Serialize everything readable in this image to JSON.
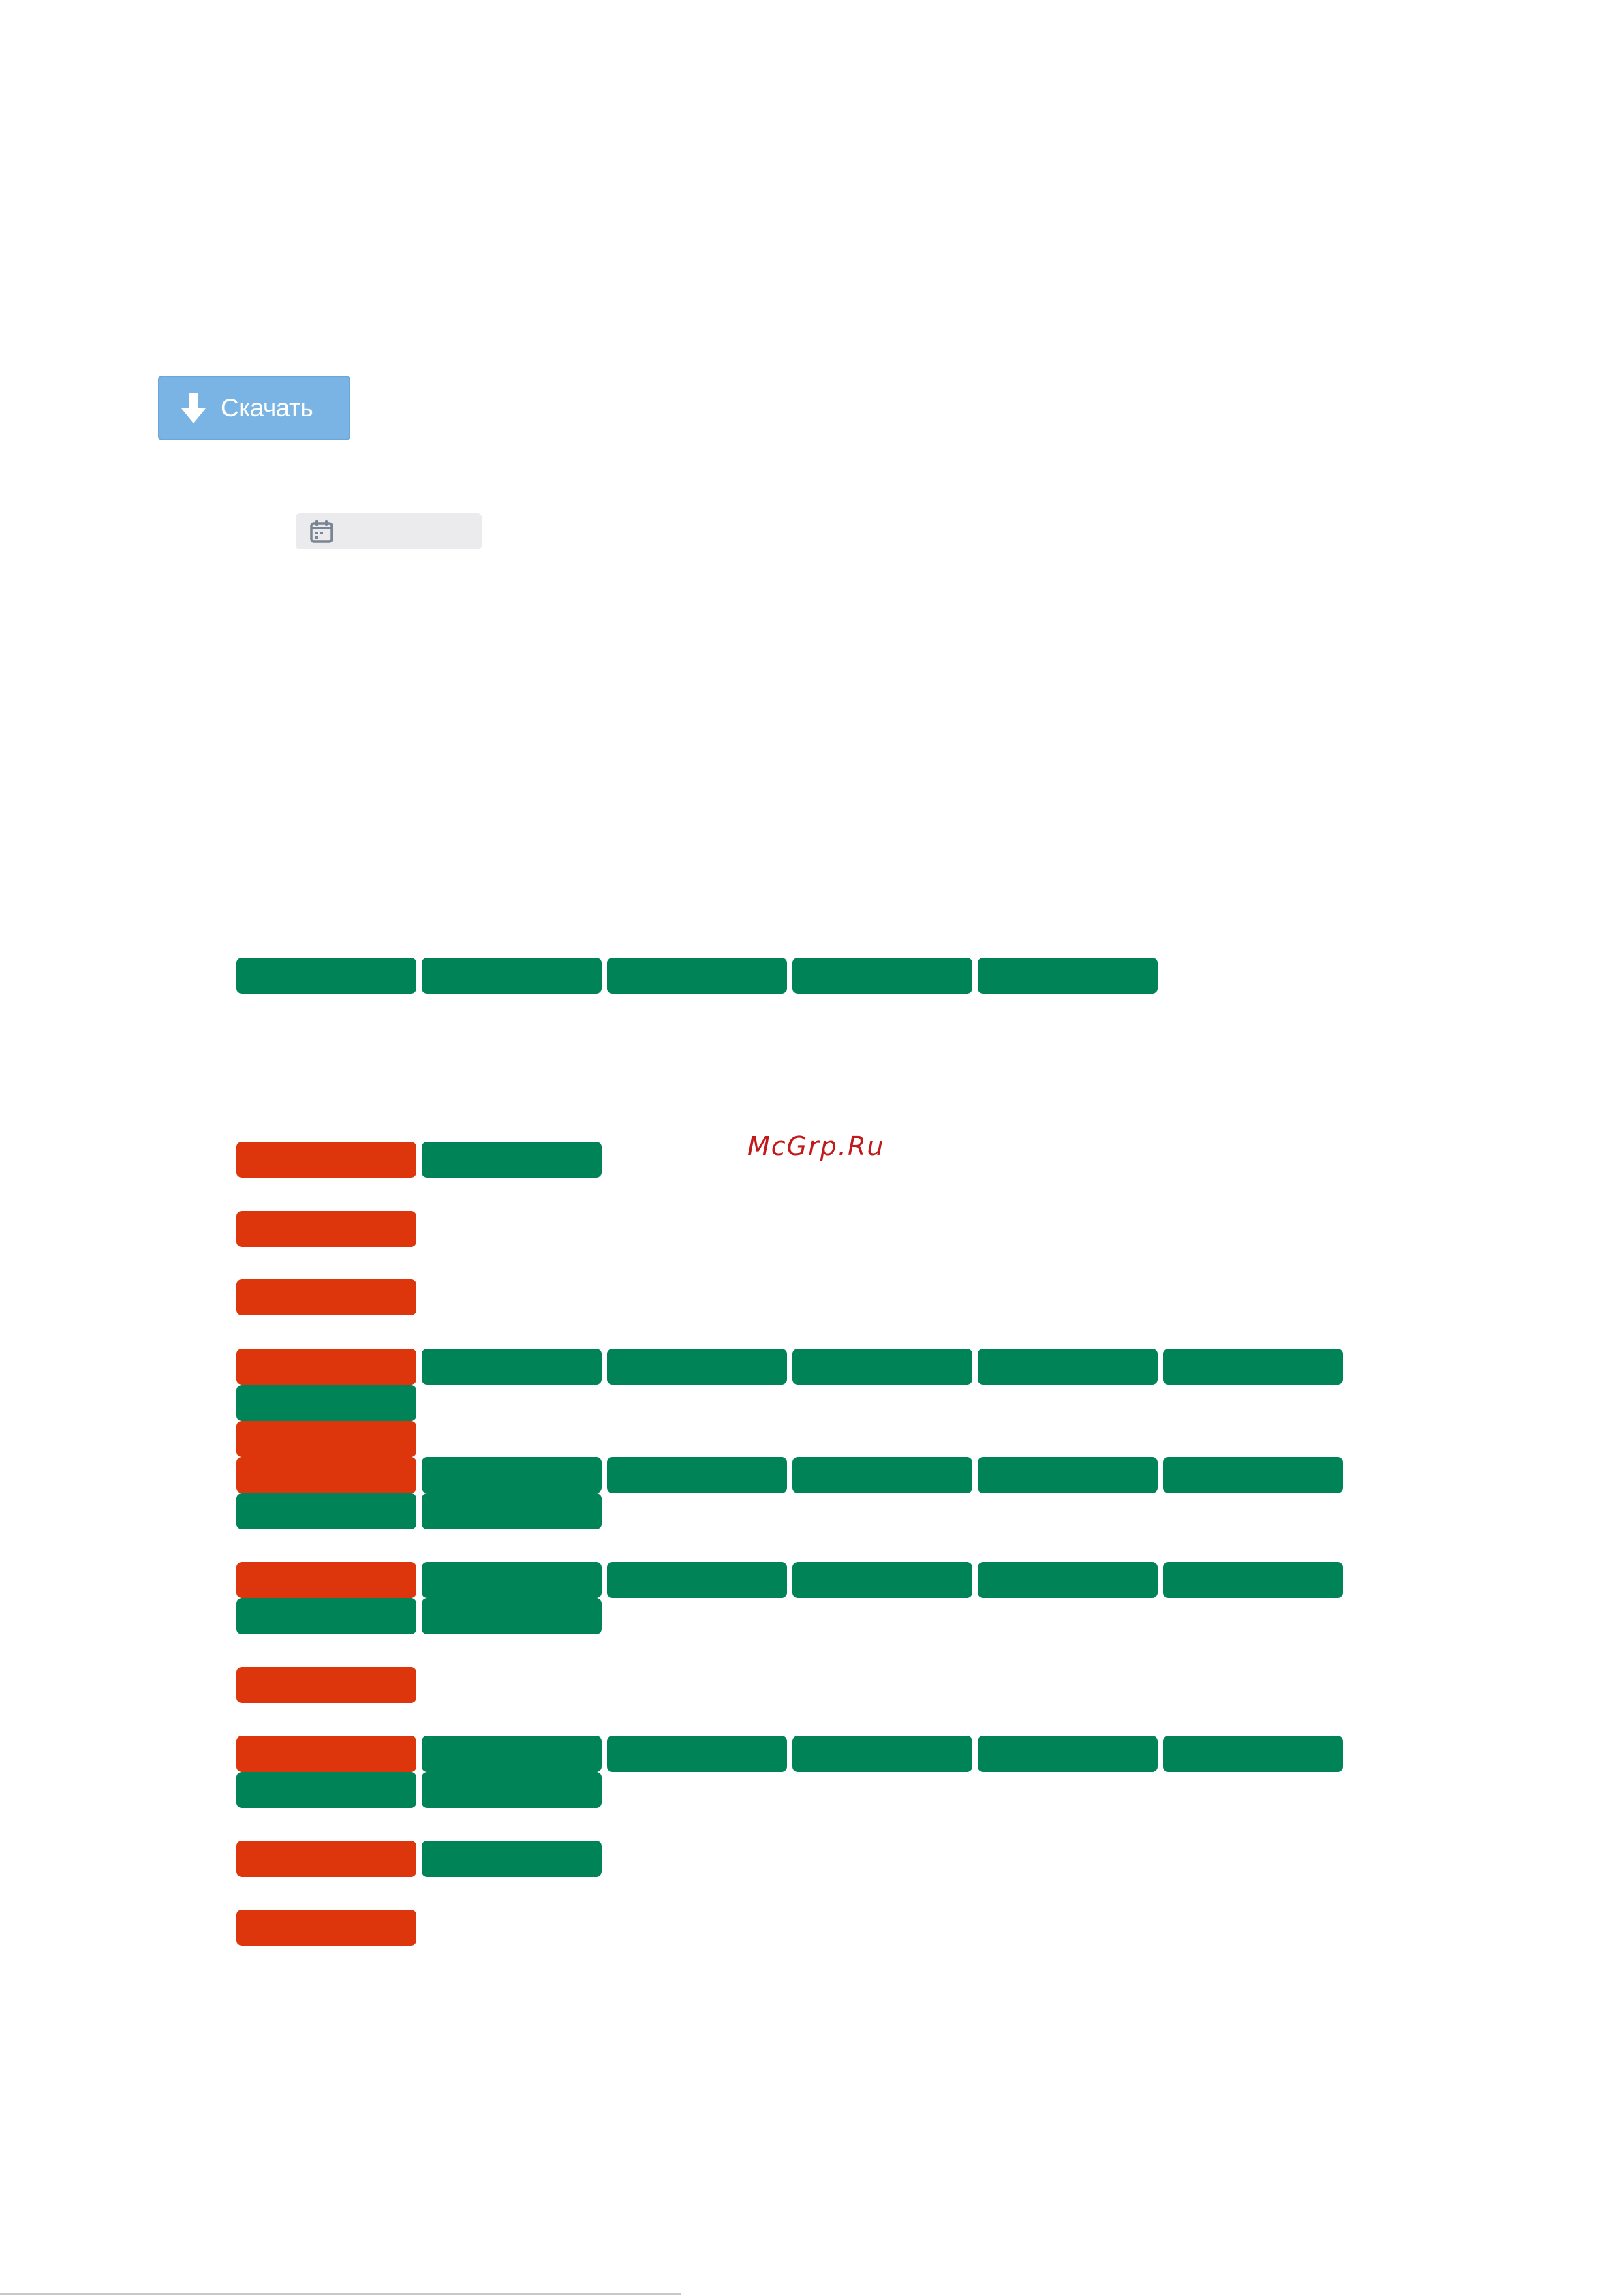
{
  "download_button": {
    "label": "Скачать",
    "icon": "arrow-down-icon",
    "color": "#79b4e4"
  },
  "date_field": {
    "icon": "calendar-icon",
    "value": ""
  },
  "watermark": {
    "text": "McGrp.Ru",
    "color": "#c21a1a"
  },
  "colors": {
    "green": "#008457",
    "red": "#dd350c"
  }
}
